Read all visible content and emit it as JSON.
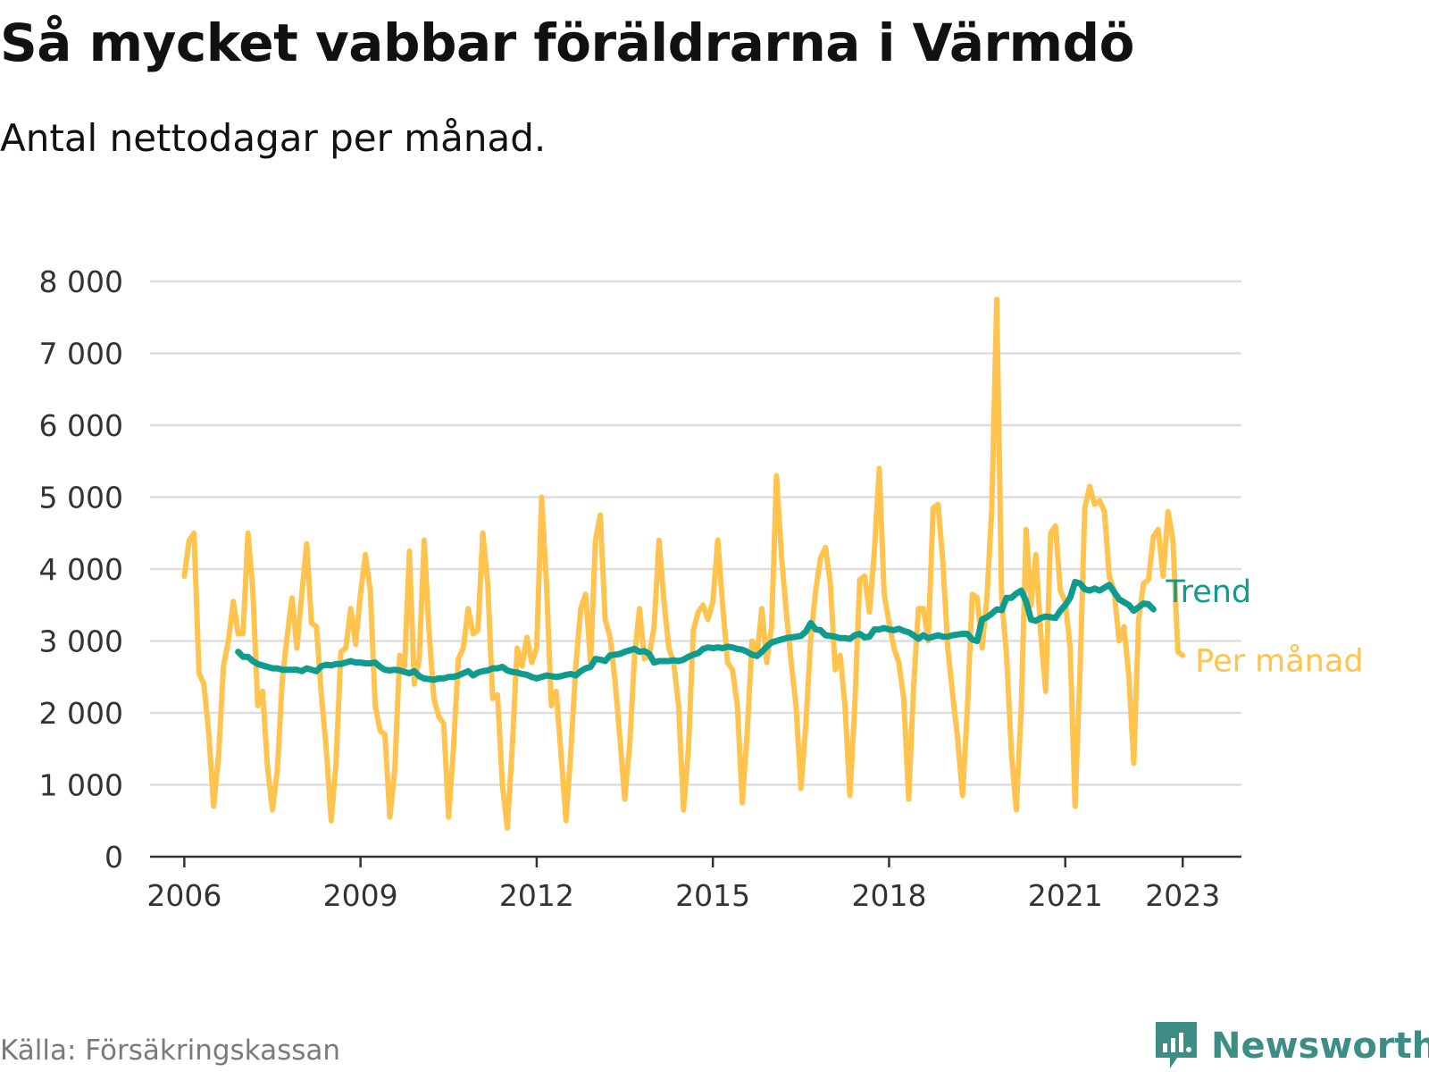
{
  "header": {
    "title": "Så mycket vabbar föräldrarna i Värmdö",
    "subtitle": "Antal nettodagar per månad."
  },
  "footer": {
    "source": "Källa: Försäkringskassan",
    "brand": "Newsworthy",
    "brand_icon": "newsworthy-logo-icon"
  },
  "colors": {
    "monthly": "#ffc34e",
    "trend": "#0f9c8f",
    "grid": "#dddddd",
    "axis": "#333333",
    "brand": "#3d8d84"
  },
  "chart_data": {
    "type": "line",
    "title": "Så mycket vabbar föräldrarna i Värmdö",
    "subtitle": "Antal nettodagar per månad.",
    "xlabel": "",
    "ylabel": "",
    "x_start": "2006-01",
    "x_end": "2023-06",
    "xlim": [
      "2005-06",
      "2024-01"
    ],
    "ylim": [
      0,
      8000
    ],
    "y_ticks": [
      0,
      1000,
      2000,
      3000,
      4000,
      5000,
      6000,
      7000,
      8000
    ],
    "y_tick_labels": [
      "0",
      "1 000",
      "2 000",
      "3 000",
      "4 000",
      "5 000",
      "6 000",
      "7 000",
      "8 000"
    ],
    "x_ticks": [
      "2006-01",
      "2009-01",
      "2012-01",
      "2015-01",
      "2018-01",
      "2021-01",
      "2023-01"
    ],
    "x_tick_labels": [
      "2006",
      "2009",
      "2012",
      "2015",
      "2018",
      "2021",
      "2023"
    ],
    "grid": "horizontal",
    "legend": "end-of-line labels",
    "series": [
      {
        "name": "Per månad",
        "color": "#ffc34e",
        "start": "2006-01",
        "values": [
          3900,
          4400,
          4500,
          2550,
          2400,
          1700,
          700,
          1400,
          2650,
          3000,
          3550,
          3100,
          3100,
          4500,
          3700,
          2100,
          2300,
          1250,
          650,
          1200,
          2450,
          3050,
          3600,
          2900,
          3650,
          4350,
          3250,
          3200,
          2250,
          1500,
          500,
          1300,
          2850,
          2900,
          3450,
          2950,
          3650,
          4200,
          3700,
          2100,
          1750,
          1700,
          550,
          1200,
          2800,
          2650,
          4250,
          2400,
          2750,
          4400,
          3150,
          2200,
          1950,
          1850,
          550,
          1500,
          2750,
          2900,
          3450,
          3100,
          3150,
          4500,
          3800,
          2200,
          2250,
          1000,
          400,
          1500,
          2900,
          2650,
          3050,
          2700,
          2900,
          5000,
          3800,
          2100,
          2300,
          1400,
          500,
          1500,
          2650,
          3450,
          3650,
          2700,
          4400,
          4750,
          3300,
          3050,
          2450,
          1650,
          800,
          1550,
          2800,
          3450,
          2750,
          2800,
          3200,
          4400,
          3550,
          2900,
          2700,
          2100,
          650,
          1500,
          3150,
          3400,
          3500,
          3300,
          3550,
          4400,
          3500,
          2700,
          2600,
          2100,
          750,
          1700,
          3000,
          2800,
          3450,
          2700,
          3200,
          5300,
          4200,
          3400,
          2700,
          2100,
          950,
          1850,
          3050,
          3700,
          4150,
          4300,
          3800,
          2600,
          2800,
          2100,
          850,
          2100,
          3850,
          3900,
          3400,
          4250,
          5400,
          3650,
          3250,
          2900,
          2700,
          2200,
          800,
          2350,
          3450,
          3450,
          3000,
          4850,
          4900,
          4100,
          2900,
          2250,
          1650,
          850,
          2050,
          3650,
          3600,
          2900,
          3600,
          4850,
          7750,
          3600,
          2800,
          1450,
          650,
          2050,
          4550,
          3500,
          4200,
          3100,
          2300,
          4500,
          4600,
          3700,
          3550,
          2900,
          700,
          2550,
          4850,
          5150,
          4900,
          4950,
          4800,
          3900,
          3700,
          3000,
          3200,
          2500,
          1300,
          3300,
          3800,
          3850,
          4450,
          4550,
          3900,
          4800,
          4400,
          2850,
          2800
        ]
      },
      {
        "name": "Trend",
        "color": "#0f9c8f",
        "start": "2006-12",
        "values": [
          2850,
          2780,
          2780,
          2720,
          2680,
          2660,
          2640,
          2620,
          2620,
          2600,
          2600,
          2600,
          2600,
          2580,
          2620,
          2600,
          2580,
          2650,
          2670,
          2660,
          2680,
          2680,
          2700,
          2720,
          2700,
          2700,
          2690,
          2690,
          2700,
          2640,
          2600,
          2590,
          2600,
          2590,
          2570,
          2550,
          2580,
          2510,
          2480,
          2470,
          2460,
          2480,
          2480,
          2500,
          2500,
          2520,
          2550,
          2580,
          2520,
          2560,
          2580,
          2590,
          2620,
          2620,
          2640,
          2590,
          2570,
          2560,
          2540,
          2530,
          2500,
          2480,
          2500,
          2520,
          2510,
          2500,
          2510,
          2530,
          2540,
          2520,
          2580,
          2620,
          2640,
          2750,
          2740,
          2720,
          2800,
          2810,
          2820,
          2850,
          2870,
          2890,
          2850,
          2860,
          2820,
          2700,
          2720,
          2720,
          2720,
          2730,
          2720,
          2740,
          2780,
          2810,
          2830,
          2890,
          2910,
          2900,
          2910,
          2900,
          2920,
          2910,
          2890,
          2880,
          2850,
          2810,
          2790,
          2850,
          2920,
          2980,
          3000,
          3020,
          3040,
          3050,
          3060,
          3070,
          3130,
          3250,
          3160,
          3150,
          3080,
          3070,
          3060,
          3040,
          3040,
          3030,
          3080,
          3100,
          3050,
          3060,
          3160,
          3160,
          3180,
          3160,
          3150,
          3170,
          3140,
          3120,
          3080,
          3030,
          3080,
          3040,
          3060,
          3080,
          3060,
          3060,
          3080,
          3090,
          3100,
          3100,
          3020,
          3000,
          3300,
          3330,
          3380,
          3440,
          3430,
          3600,
          3600,
          3660,
          3700,
          3550,
          3300,
          3280,
          3320,
          3340,
          3330,
          3320,
          3420,
          3500,
          3600,
          3820,
          3800,
          3720,
          3700,
          3730,
          3700,
          3740,
          3780,
          3680,
          3580,
          3540,
          3500,
          3420,
          3470,
          3520,
          3510,
          3440
        ]
      }
    ]
  }
}
